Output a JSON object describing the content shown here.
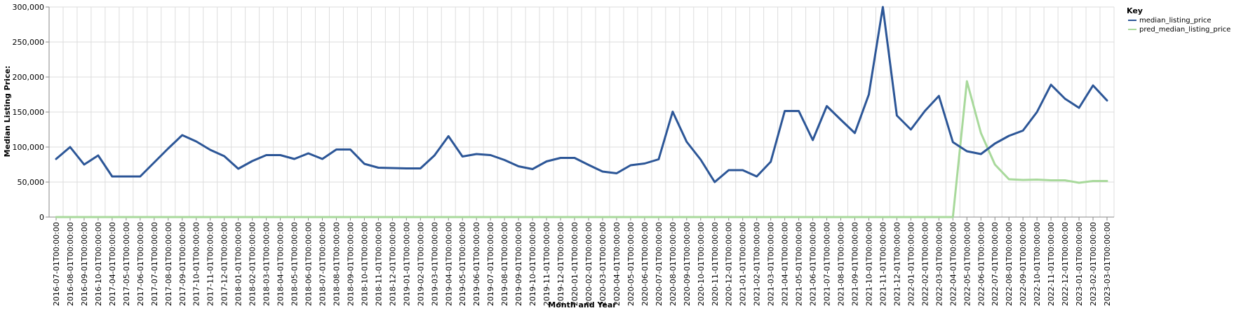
{
  "chart_data": {
    "type": "line",
    "title": "",
    "xlabel": "Month and Year",
    "ylabel": "Median Listing Price:",
    "ylim": [
      0,
      300000
    ],
    "yticks": [
      0,
      50000,
      100000,
      150000,
      200000,
      250000,
      300000
    ],
    "ytick_labels": [
      "0",
      "50,000",
      "100,000",
      "150,000",
      "200,000",
      "250,000",
      "300,000"
    ],
    "grid": true,
    "legend": {
      "title": "Key",
      "placement": "top-right"
    },
    "x": [
      "2016-07-01T00:00:00",
      "2016-08-01T00:00:00",
      "2016-09-01T00:00:00",
      "2016-10-01T00:00:00",
      "2017-04-01T00:00:00",
      "2017-05-01T00:00:00",
      "2017-06-01T00:00:00",
      "2017-07-01T00:00:00",
      "2017-08-01T00:00:00",
      "2017-09-01T00:00:00",
      "2017-10-01T00:00:00",
      "2017-11-01T00:00:00",
      "2017-12-01T00:00:00",
      "2018-01-01T00:00:00",
      "2018-02-01T00:00:00",
      "2018-03-01T00:00:00",
      "2018-04-01T00:00:00",
      "2018-05-01T00:00:00",
      "2018-06-01T00:00:00",
      "2018-07-01T00:00:00",
      "2018-08-01T00:00:00",
      "2018-09-01T00:00:00",
      "2018-10-01T00:00:00",
      "2018-11-01T00:00:00",
      "2018-12-01T00:00:00",
      "2019-01-01T00:00:00",
      "2019-02-01T00:00:00",
      "2019-03-01T00:00:00",
      "2019-04-01T00:00:00",
      "2019-05-01T00:00:00",
      "2019-06-01T00:00:00",
      "2019-07-01T00:00:00",
      "2019-08-01T00:00:00",
      "2019-09-01T00:00:00",
      "2019-10-01T00:00:00",
      "2019-11-01T00:00:00",
      "2019-12-01T00:00:00",
      "2020-01-01T00:00:00",
      "2020-02-01T00:00:00",
      "2020-03-01T00:00:00",
      "2020-04-01T00:00:00",
      "2020-05-01T00:00:00",
      "2020-06-01T00:00:00",
      "2020-07-01T00:00:00",
      "2020-08-01T00:00:00",
      "2020-09-01T00:00:00",
      "2020-10-01T00:00:00",
      "2020-11-01T00:00:00",
      "2020-12-01T00:00:00",
      "2021-01-01T00:00:00",
      "2021-02-01T00:00:00",
      "2021-03-01T00:00:00",
      "2021-04-01T00:00:00",
      "2021-05-01T00:00:00",
      "2021-06-01T00:00:00",
      "2021-07-01T00:00:00",
      "2021-08-01T00:00:00",
      "2021-09-01T00:00:00",
      "2021-10-01T00:00:00",
      "2021-11-01T00:00:00",
      "2021-12-01T00:00:00",
      "2022-01-01T00:00:00",
      "2022-02-01T00:00:00",
      "2022-03-01T00:00:00",
      "2022-04-01T00:00:00",
      "2022-05-01T00:00:00",
      "2022-06-01T00:00:00",
      "2022-07-01T00:00:00",
      "2022-08-01T00:00:00",
      "2022-09-01T00:00:00",
      "2022-10-01T00:00:00",
      "2022-11-01T00:00:00",
      "2022-12-01T00:00:00",
      "2023-01-01T00:00:00",
      "2023-02-01T00:00:00",
      "2023-03-01T00:00:00"
    ],
    "series": [
      {
        "name": "median_listing_price",
        "color": "#2c5697",
        "values": [
          83000,
          100000,
          75000,
          88000,
          58000,
          58000,
          58000,
          78000,
          98000,
          117000,
          108000,
          96000,
          87000,
          69000,
          80000,
          88500,
          88500,
          83000,
          91000,
          83000,
          96500,
          96500,
          76000,
          70500,
          70000,
          69500,
          69500,
          88000,
          115500,
          86500,
          90000,
          88500,
          81500,
          72500,
          68500,
          79500,
          84500,
          84500,
          74500,
          65000,
          62500,
          74000,
          76500,
          82500,
          150500,
          107500,
          82000,
          50000,
          67000,
          67000,
          58000,
          79000,
          151500,
          151500,
          110000,
          158500,
          139000,
          120000,
          175000,
          300000,
          145000,
          125000,
          151500,
          173000,
          107000,
          94000,
          90000,
          105000,
          116000,
          123500,
          150000,
          189000,
          169000,
          156000,
          188000,
          166500
        ]
      },
      {
        "name": "pred_median_listing_price",
        "color": "#a8d99b",
        "values": [
          0,
          0,
          0,
          0,
          0,
          0,
          0,
          0,
          0,
          0,
          0,
          0,
          0,
          0,
          0,
          0,
          0,
          0,
          0,
          0,
          0,
          0,
          0,
          0,
          0,
          0,
          0,
          0,
          0,
          0,
          0,
          0,
          0,
          0,
          0,
          0,
          0,
          0,
          0,
          0,
          0,
          0,
          0,
          0,
          0,
          0,
          0,
          0,
          0,
          0,
          0,
          0,
          0,
          0,
          0,
          0,
          0,
          0,
          0,
          0,
          0,
          0,
          0,
          0,
          0,
          194000,
          120000,
          75000,
          54000,
          53000,
          53500,
          52500,
          52500,
          49000,
          51500,
          51500
        ]
      }
    ]
  }
}
